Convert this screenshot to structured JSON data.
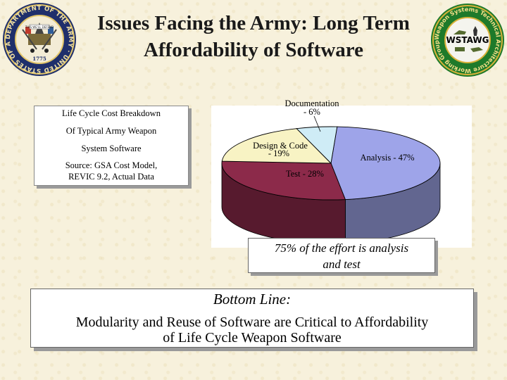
{
  "slide": {
    "title_line1": "Issues Facing the Army: Long Term",
    "title_line2": "Affordability of Software"
  },
  "left_logo": {
    "ring_text": "DEPARTMENT OF THE ARMY · UNITED STATES OF AMERICA",
    "year": "1775",
    "ribbon": "THIS WE'LL DEFEND"
  },
  "right_logo": {
    "name": "WSTAWG",
    "ring_text": "Weapon Systems Technical Architecture Working Group"
  },
  "info_box": {
    "line1": "Life Cycle Cost Breakdown",
    "line2": "Of Typical Army Weapon",
    "line3": "System Software",
    "line4": "Source: GSA Cost Model,",
    "line5": "REVIC 9.2, Actual Data"
  },
  "chart_data": {
    "type": "pie",
    "three_d": true,
    "slices": [
      {
        "label": "Analysis",
        "value": 47,
        "label_text": "Analysis - 47%",
        "color": "#9ea4e9"
      },
      {
        "label": "Test",
        "value": 28,
        "label_text": "Test - 28%",
        "color": "#8c2a4a"
      },
      {
        "label": "Design & Code",
        "value": 19,
        "label_line1": "Design & Code",
        "label_line2": "- 19%",
        "color": "#f8f3c4"
      },
      {
        "label": "Documentation",
        "value": 6,
        "label_line1": "Documentation",
        "label_line2": "- 6%",
        "color": "#cfecf6"
      }
    ]
  },
  "callout": {
    "line1": "75% of the effort is analysis",
    "line2": "and test"
  },
  "bottom_line": {
    "heading": "Bottom Line:",
    "line1": "Modularity and Reuse of Software are Critical to Affordability",
    "line2": "of Life Cycle Weapon Software"
  }
}
